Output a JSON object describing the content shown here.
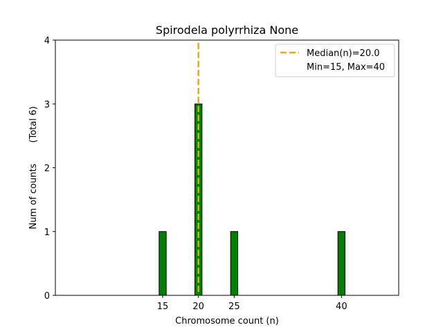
{
  "chart_data": {
    "type": "bar",
    "title": "Spirodela polyrrhiza None",
    "xlabel": "Chromosome count (n)",
    "ylabel": "Num of counts",
    "ylabel_extra": "(Total 6)",
    "xlim": [
      0,
      48
    ],
    "ylim": [
      0,
      4
    ],
    "x_ticks": [
      15,
      20,
      25,
      40
    ],
    "y_ticks": [
      0,
      1,
      2,
      3,
      4
    ],
    "bars": [
      {
        "x": 15,
        "value": 1
      },
      {
        "x": 20,
        "value": 3
      },
      {
        "x": 25,
        "value": 1
      },
      {
        "x": 40,
        "value": 1
      }
    ],
    "bar_width": 1,
    "bar_color": "#008000",
    "median_line": {
      "x": 20,
      "color": "#f0a800",
      "label": "Median(n)=20.0"
    },
    "legend": {
      "placement": "top-right",
      "extra_text": "Min=15, Max=40"
    },
    "grid": false
  }
}
